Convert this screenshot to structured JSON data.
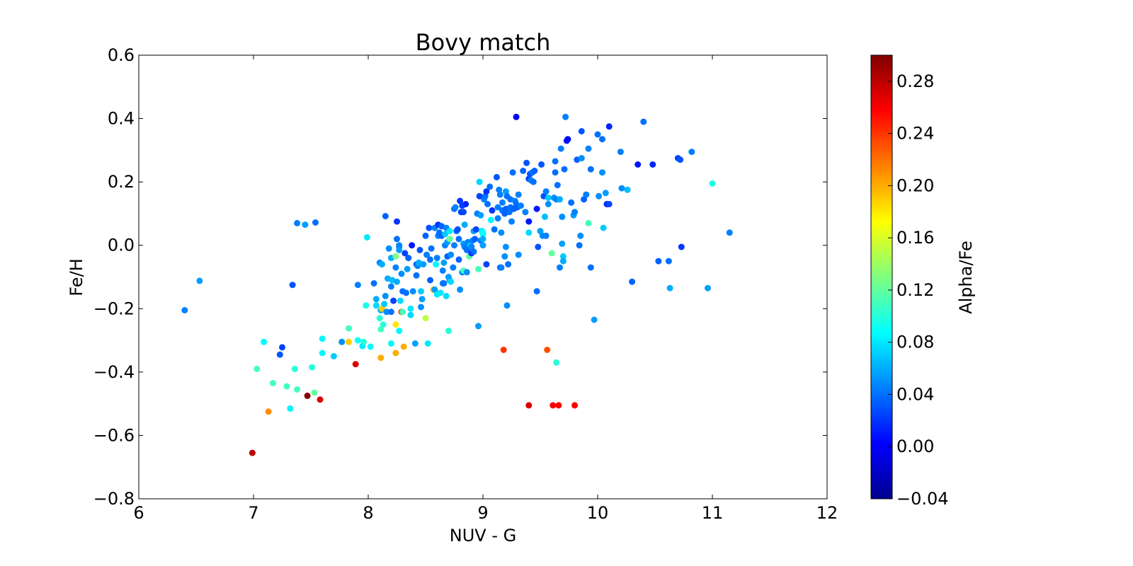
{
  "chart_data": {
    "type": "scatter",
    "title": "Bovy match",
    "xlabel": "NUV - G",
    "ylabel": "Fe/H",
    "xlim": [
      6,
      12
    ],
    "ylim": [
      -0.8,
      0.6
    ],
    "x_ticks": [
      6,
      7,
      8,
      9,
      10,
      11,
      12
    ],
    "x_tick_labels": [
      "6",
      "7",
      "8",
      "9",
      "10",
      "11",
      "12"
    ],
    "y_ticks": [
      -0.8,
      -0.6,
      -0.4,
      -0.2,
      0.0,
      0.2,
      0.4,
      0.6
    ],
    "y_tick_labels": [
      "−0.8",
      "−0.6",
      "−0.4",
      "−0.2",
      "0.0",
      "0.2",
      "0.4",
      "0.6"
    ],
    "grid": false,
    "colorbar": {
      "label": "Alpha/Fe",
      "colormap": "jet",
      "range": [
        -0.04,
        0.3
      ],
      "ticks": [
        -0.04,
        0.0,
        0.04,
        0.08,
        0.12,
        0.16,
        0.2,
        0.24,
        0.28
      ],
      "tick_labels": [
        "−0.04",
        "0.00",
        "0.04",
        "0.08",
        "0.12",
        "0.16",
        "0.20",
        "0.24",
        "0.28"
      ]
    },
    "points": [
      [
        6.4,
        -0.205,
        0.045
      ],
      [
        6.53,
        -0.112,
        0.055
      ],
      [
        6.99,
        -0.655,
        0.28
      ],
      [
        7.03,
        -0.39,
        0.11
      ],
      [
        7.09,
        -0.305,
        0.085
      ],
      [
        7.13,
        -0.525,
        0.21
      ],
      [
        7.17,
        -0.435,
        0.11
      ],
      [
        7.23,
        -0.345,
        0.03
      ],
      [
        7.25,
        -0.322,
        0.025
      ],
      [
        7.29,
        -0.445,
        0.11
      ],
      [
        7.32,
        -0.515,
        0.085
      ],
      [
        7.34,
        -0.125,
        0.03
      ],
      [
        7.36,
        -0.39,
        0.1
      ],
      [
        7.38,
        0.07,
        0.045
      ],
      [
        7.38,
        -0.455,
        0.11
      ],
      [
        7.45,
        0.065,
        0.055
      ],
      [
        7.47,
        -0.475,
        0.3
      ],
      [
        7.51,
        -0.385,
        0.1
      ],
      [
        7.53,
        -0.465,
        0.12
      ],
      [
        7.54,
        0.072,
        0.04
      ],
      [
        7.58,
        -0.487,
        0.27
      ],
      [
        7.6,
        -0.295,
        0.085
      ],
      [
        7.6,
        -0.34,
        0.085
      ],
      [
        7.7,
        -0.35,
        0.07
      ],
      [
        7.77,
        -0.305,
        0.05
      ],
      [
        7.83,
        -0.262,
        0.11
      ],
      [
        7.83,
        -0.305,
        0.19
      ],
      [
        7.89,
        -0.375,
        0.27
      ],
      [
        7.91,
        -0.125,
        0.045
      ],
      [
        7.91,
        -0.3,
        0.09
      ],
      [
        7.95,
        -0.318,
        0.08
      ],
      [
        7.96,
        -0.305,
        0.1
      ],
      [
        7.98,
        -0.19,
        0.095
      ],
      [
        7.99,
        0.025,
        0.08
      ],
      [
        8.02,
        -0.32,
        0.085
      ],
      [
        8.05,
        -0.12,
        0.04
      ],
      [
        8.07,
        -0.17,
        0.06
      ],
      [
        8.07,
        -0.19,
        0.075
      ],
      [
        8.1,
        -0.055,
        0.05
      ],
      [
        8.1,
        -0.23,
        0.1
      ],
      [
        8.11,
        -0.265,
        0.11
      ],
      [
        8.11,
        -0.205,
        0.06
      ],
      [
        8.11,
        -0.355,
        0.2
      ],
      [
        8.12,
        -0.06,
        0.06
      ],
      [
        8.12,
        -0.2,
        0.19
      ],
      [
        8.13,
        -0.25,
        0.1
      ],
      [
        8.14,
        -0.185,
        0.07
      ],
      [
        8.15,
        0.092,
        0.035
      ],
      [
        8.15,
        -0.16,
        0.05
      ],
      [
        8.16,
        -0.21,
        0.05
      ],
      [
        8.17,
        -0.105,
        0.06
      ],
      [
        8.18,
        -0.01,
        0.05
      ],
      [
        8.2,
        -0.31,
        0.085
      ],
      [
        8.2,
        -0.04,
        0.06
      ],
      [
        8.2,
        -0.21,
        0.04
      ],
      [
        8.2,
        -0.13,
        0.045
      ],
      [
        8.21,
        -0.11,
        0.065
      ],
      [
        8.22,
        -0.175,
        0.025
      ],
      [
        8.24,
        -0.035,
        0.13
      ],
      [
        8.24,
        -0.07,
        0.045
      ],
      [
        8.24,
        -0.25,
        0.18
      ],
      [
        8.24,
        -0.34,
        0.2
      ],
      [
        8.25,
        0.075,
        0.02
      ],
      [
        8.25,
        -0.115,
        0.06
      ],
      [
        8.25,
        0.02,
        0.04
      ],
      [
        8.27,
        0.0,
        0.05
      ],
      [
        8.27,
        -0.005,
        0.045
      ],
      [
        8.27,
        -0.015,
        0.055
      ],
      [
        8.27,
        -0.27,
        0.085
      ],
      [
        8.28,
        -0.175,
        0.075
      ],
      [
        8.29,
        -0.21,
        0.24
      ],
      [
        8.29,
        -0.09,
        0.05
      ],
      [
        8.3,
        -0.21,
        0.11
      ],
      [
        8.3,
        -0.145,
        0.04
      ],
      [
        8.31,
        -0.32,
        0.2
      ],
      [
        8.32,
        -0.025,
        0.025
      ],
      [
        8.33,
        -0.15,
        0.04
      ],
      [
        8.34,
        -0.075,
        0.055
      ],
      [
        8.35,
        -0.04,
        0.035
      ],
      [
        8.37,
        -0.2,
        0.08
      ],
      [
        8.37,
        -0.22,
        0.075
      ],
      [
        8.38,
        0.0,
        0.01
      ],
      [
        8.39,
        -0.145,
        0.05
      ],
      [
        8.41,
        -0.31,
        0.055
      ],
      [
        8.42,
        -0.06,
        0.04
      ],
      [
        8.42,
        -0.095,
        0.04
      ],
      [
        8.43,
        -0.065,
        0.045
      ],
      [
        8.44,
        -0.055,
        0.06
      ],
      [
        8.45,
        -0.015,
        0.03
      ],
      [
        8.46,
        -0.145,
        0.07
      ],
      [
        8.46,
        -0.195,
        0.05
      ],
      [
        8.47,
        -0.17,
        0.055
      ],
      [
        8.48,
        -0.06,
        0.055
      ],
      [
        8.5,
        -0.23,
        0.15
      ],
      [
        8.5,
        0.03,
        0.035
      ],
      [
        8.51,
        -0.03,
        0.045
      ],
      [
        8.52,
        -0.31,
        0.08
      ],
      [
        8.53,
        0.055,
        0.03
      ],
      [
        8.54,
        -0.11,
        0.035
      ],
      [
        8.54,
        -0.045,
        0.04
      ],
      [
        8.55,
        -0.01,
        0.04
      ],
      [
        8.57,
        -0.14,
        0.2
      ],
      [
        8.58,
        0.055,
        0.045
      ],
      [
        8.58,
        -0.14,
        0.055
      ],
      [
        8.59,
        -0.06,
        0.085
      ],
      [
        8.6,
        -0.155,
        0.08
      ],
      [
        8.6,
        -0.04,
        0.045
      ],
      [
        8.61,
        0.065,
        0.02
      ],
      [
        8.61,
        0.03,
        0.045
      ],
      [
        8.62,
        0.04,
        0.04
      ],
      [
        8.63,
        -0.15,
        0.08
      ],
      [
        8.64,
        0.03,
        0.035
      ],
      [
        8.64,
        0.06,
        0.035
      ],
      [
        8.65,
        -0.08,
        0.045
      ],
      [
        8.65,
        -0.12,
        0.045
      ],
      [
        8.66,
        -0.12,
        0.04
      ],
      [
        8.66,
        -0.055,
        0.055
      ],
      [
        8.67,
        0.035,
        0.07
      ],
      [
        8.67,
        0.0,
        0.045
      ],
      [
        8.68,
        -0.16,
        0.075
      ],
      [
        8.68,
        0.055,
        0.045
      ],
      [
        8.69,
        0.01,
        0.055
      ],
      [
        8.69,
        -0.035,
        0.035
      ],
      [
        8.7,
        -0.27,
        0.1
      ],
      [
        8.7,
        -0.1,
        0.055
      ],
      [
        8.71,
        -0.11,
        0.055
      ],
      [
        8.71,
        0.045,
        0.08
      ],
      [
        8.71,
        0.02,
        0.12
      ],
      [
        8.72,
        -0.115,
        0.075
      ],
      [
        8.72,
        -0.03,
        0.05
      ],
      [
        8.74,
        -0.07,
        0.045
      ],
      [
        8.75,
        0.0,
        0.045
      ],
      [
        8.75,
        0.115,
        0.04
      ],
      [
        8.76,
        0.12,
        0.045
      ],
      [
        8.77,
        0.045,
        0.04
      ],
      [
        8.78,
        0.05,
        0.03
      ],
      [
        8.79,
        -0.045,
        0.035
      ],
      [
        8.79,
        0.02,
        0.04
      ],
      [
        8.8,
        0.14,
        0.02
      ],
      [
        8.8,
        -0.14,
        0.05
      ],
      [
        8.81,
        0.105,
        0.025
      ],
      [
        8.82,
        0.125,
        0.025
      ],
      [
        8.82,
        -0.085,
        0.045
      ],
      [
        8.83,
        -0.08,
        0.11
      ],
      [
        8.83,
        0.105,
        0.025
      ],
      [
        8.83,
        0.005,
        0.055
      ],
      [
        8.84,
        0.065,
        0.06
      ],
      [
        8.84,
        -0.005,
        0.045
      ],
      [
        8.85,
        0.13,
        0.015
      ],
      [
        8.86,
        -0.085,
        0.05
      ],
      [
        8.86,
        -0.015,
        0.04
      ],
      [
        8.87,
        0.01,
        0.045
      ],
      [
        8.88,
        -0.035,
        0.12
      ],
      [
        8.89,
        0.0,
        0.07
      ],
      [
        8.9,
        -0.025,
        0.02
      ],
      [
        8.9,
        -0.005,
        0.045
      ],
      [
        8.91,
        0.015,
        0.045
      ],
      [
        8.92,
        0.045,
        0.055
      ],
      [
        8.92,
        -0.02,
        0.04
      ],
      [
        8.93,
        0.02,
        0.035
      ],
      [
        8.94,
        0.05,
        0.025
      ],
      [
        8.95,
        0.1,
        0.045
      ],
      [
        8.96,
        -0.075,
        0.11
      ],
      [
        8.96,
        -0.255,
        0.055
      ],
      [
        8.97,
        0.155,
        0.025
      ],
      [
        8.97,
        0.2,
        0.075
      ],
      [
        8.98,
        0.015,
        0.045
      ],
      [
        8.98,
        0.095,
        0.055
      ],
      [
        8.99,
        0.045,
        0.08
      ],
      [
        9.0,
        0.035,
        0.085
      ],
      [
        9.0,
        0.04,
        0.09
      ],
      [
        9.0,
        0.02,
        0.06
      ],
      [
        9.0,
        0.0,
        0.055
      ],
      [
        9.01,
        0.145,
        0.045
      ],
      [
        9.02,
        0.155,
        0.04
      ],
      [
        9.03,
        0.17,
        0.02
      ],
      [
        9.03,
        -0.06,
        0.025
      ],
      [
        9.04,
        0.13,
        0.04
      ],
      [
        9.06,
        0.185,
        0.04
      ],
      [
        9.07,
        0.08,
        0.085
      ],
      [
        9.08,
        0.11,
        0.02
      ],
      [
        9.1,
        0.05,
        0.04
      ],
      [
        9.12,
        0.215,
        0.03
      ],
      [
        9.13,
        0.12,
        0.045
      ],
      [
        9.13,
        0.085,
        0.045
      ],
      [
        9.14,
        0.175,
        0.045
      ],
      [
        9.15,
        0.16,
        0.045
      ],
      [
        9.15,
        -0.07,
        0.04
      ],
      [
        9.16,
        -0.07,
        0.045
      ],
      [
        9.16,
        0.04,
        0.05
      ],
      [
        9.17,
        0.11,
        0.04
      ],
      [
        9.17,
        0.135,
        0.045
      ],
      [
        9.18,
        -0.33,
        0.24
      ],
      [
        9.19,
        -0.035,
        0.05
      ],
      [
        9.19,
        0.1,
        0.035
      ],
      [
        9.2,
        0.115,
        0.035
      ],
      [
        9.2,
        0.17,
        0.055
      ],
      [
        9.2,
        -0.005,
        0.05
      ],
      [
        9.21,
        -0.19,
        0.05
      ],
      [
        9.21,
        0.155,
        0.04
      ],
      [
        9.22,
        -0.06,
        0.04
      ],
      [
        9.23,
        0.105,
        0.04
      ],
      [
        9.24,
        0.12,
        0.04
      ],
      [
        9.24,
        0.145,
        0.04
      ],
      [
        9.25,
        0.075,
        0.045
      ],
      [
        9.26,
        0.23,
        0.04
      ],
      [
        9.27,
        0.115,
        0.035
      ],
      [
        9.28,
        0.14,
        0.045
      ],
      [
        9.29,
        0.13,
        0.04
      ],
      [
        9.29,
        0.405,
        0.0
      ],
      [
        9.3,
        0.12,
        0.035
      ],
      [
        9.31,
        0.16,
        0.045
      ],
      [
        9.31,
        -0.03,
        0.05
      ],
      [
        9.33,
        0.125,
        0.045
      ],
      [
        9.35,
        0.235,
        0.035
      ],
      [
        9.37,
        0.105,
        0.045
      ],
      [
        9.38,
        0.26,
        0.03
      ],
      [
        9.4,
        0.21,
        0.025
      ],
      [
        9.4,
        0.04,
        0.075
      ],
      [
        9.4,
        0.075,
        0.01
      ],
      [
        9.4,
        -0.505,
        0.27
      ],
      [
        9.41,
        0.225,
        0.03
      ],
      [
        9.42,
        0.205,
        0.045
      ],
      [
        9.43,
        0.23,
        0.04
      ],
      [
        9.44,
        0.2,
        0.04
      ],
      [
        9.45,
        0.235,
        0.035
      ],
      [
        9.47,
        0.115,
        0.01
      ],
      [
        9.47,
        -0.145,
        0.04
      ],
      [
        9.48,
        -0.005,
        0.03
      ],
      [
        9.5,
        0.045,
        0.055
      ],
      [
        9.51,
        0.255,
        0.03
      ],
      [
        9.52,
        0.03,
        0.05
      ],
      [
        9.53,
        0.155,
        0.03
      ],
      [
        9.54,
        0.09,
        0.065
      ],
      [
        9.55,
        0.17,
        0.045
      ],
      [
        9.55,
        0.03,
        0.045
      ],
      [
        9.56,
        -0.33,
        0.23
      ],
      [
        9.57,
        0.15,
        0.07
      ],
      [
        9.57,
        0.13,
        0.05
      ],
      [
        9.6,
        -0.025,
        0.12
      ],
      [
        9.61,
        -0.505,
        0.26
      ],
      [
        9.62,
        0.15,
        0.05
      ],
      [
        9.63,
        0.265,
        0.04
      ],
      [
        9.63,
        0.23,
        0.04
      ],
      [
        9.64,
        0.145,
        0.045
      ],
      [
        9.64,
        -0.37,
        0.1
      ],
      [
        9.65,
        0.19,
        0.04
      ],
      [
        9.66,
        -0.505,
        0.26
      ],
      [
        9.67,
        0.145,
        0.06
      ],
      [
        9.67,
        -0.07,
        0.045
      ],
      [
        9.68,
        0.305,
        0.045
      ],
      [
        9.69,
        0.005,
        0.055
      ],
      [
        9.69,
        0.09,
        0.05
      ],
      [
        9.7,
        -0.035,
        0.07
      ],
      [
        9.7,
        -0.05,
        0.06
      ],
      [
        9.71,
        0.24,
        0.04
      ],
      [
        9.72,
        0.405,
        0.045
      ],
      [
        9.73,
        0.33,
        0.01
      ],
      [
        9.74,
        0.335,
        0.005
      ],
      [
        9.77,
        0.135,
        0.04
      ],
      [
        9.79,
        0.095,
        0.055
      ],
      [
        9.8,
        -0.505,
        0.26
      ],
      [
        9.8,
        0.105,
        0.045
      ],
      [
        9.82,
        0.27,
        0.035
      ],
      [
        9.84,
        0.0,
        0.04
      ],
      [
        9.85,
        0.03,
        0.05
      ],
      [
        9.86,
        0.275,
        0.05
      ],
      [
        9.86,
        0.36,
        0.03
      ],
      [
        9.88,
        0.145,
        0.035
      ],
      [
        9.9,
        0.16,
        0.045
      ],
      [
        9.92,
        0.07,
        0.11
      ],
      [
        9.92,
        0.305,
        0.045
      ],
      [
        9.94,
        0.24,
        0.04
      ],
      [
        9.94,
        -0.07,
        0.04
      ],
      [
        9.97,
        -0.235,
        0.055
      ],
      [
        10.0,
        0.35,
        0.04
      ],
      [
        10.01,
        0.155,
        0.05
      ],
      [
        10.04,
        0.335,
        0.04
      ],
      [
        10.04,
        0.23,
        0.05
      ],
      [
        10.05,
        0.055,
        0.07
      ],
      [
        10.07,
        0.165,
        0.055
      ],
      [
        10.08,
        0.13,
        0.015
      ],
      [
        10.1,
        0.13,
        0.025
      ],
      [
        10.1,
        0.375,
        0.015
      ],
      [
        10.2,
        0.295,
        0.045
      ],
      [
        10.21,
        0.18,
        0.05
      ],
      [
        10.26,
        0.175,
        0.065
      ],
      [
        10.3,
        -0.115,
        0.035
      ],
      [
        10.35,
        0.255,
        0.01
      ],
      [
        10.4,
        0.39,
        0.04
      ],
      [
        10.48,
        0.255,
        0.015
      ],
      [
        10.53,
        -0.05,
        0.035
      ],
      [
        10.62,
        -0.05,
        0.04
      ],
      [
        10.63,
        -0.135,
        0.06
      ],
      [
        10.7,
        0.275,
        0.025
      ],
      [
        10.72,
        0.27,
        0.03
      ],
      [
        10.73,
        -0.005,
        0.02
      ],
      [
        10.82,
        0.295,
        0.045
      ],
      [
        10.96,
        -0.135,
        0.055
      ],
      [
        11.0,
        0.195,
        0.095
      ],
      [
        11.15,
        0.04,
        0.045
      ]
    ]
  }
}
